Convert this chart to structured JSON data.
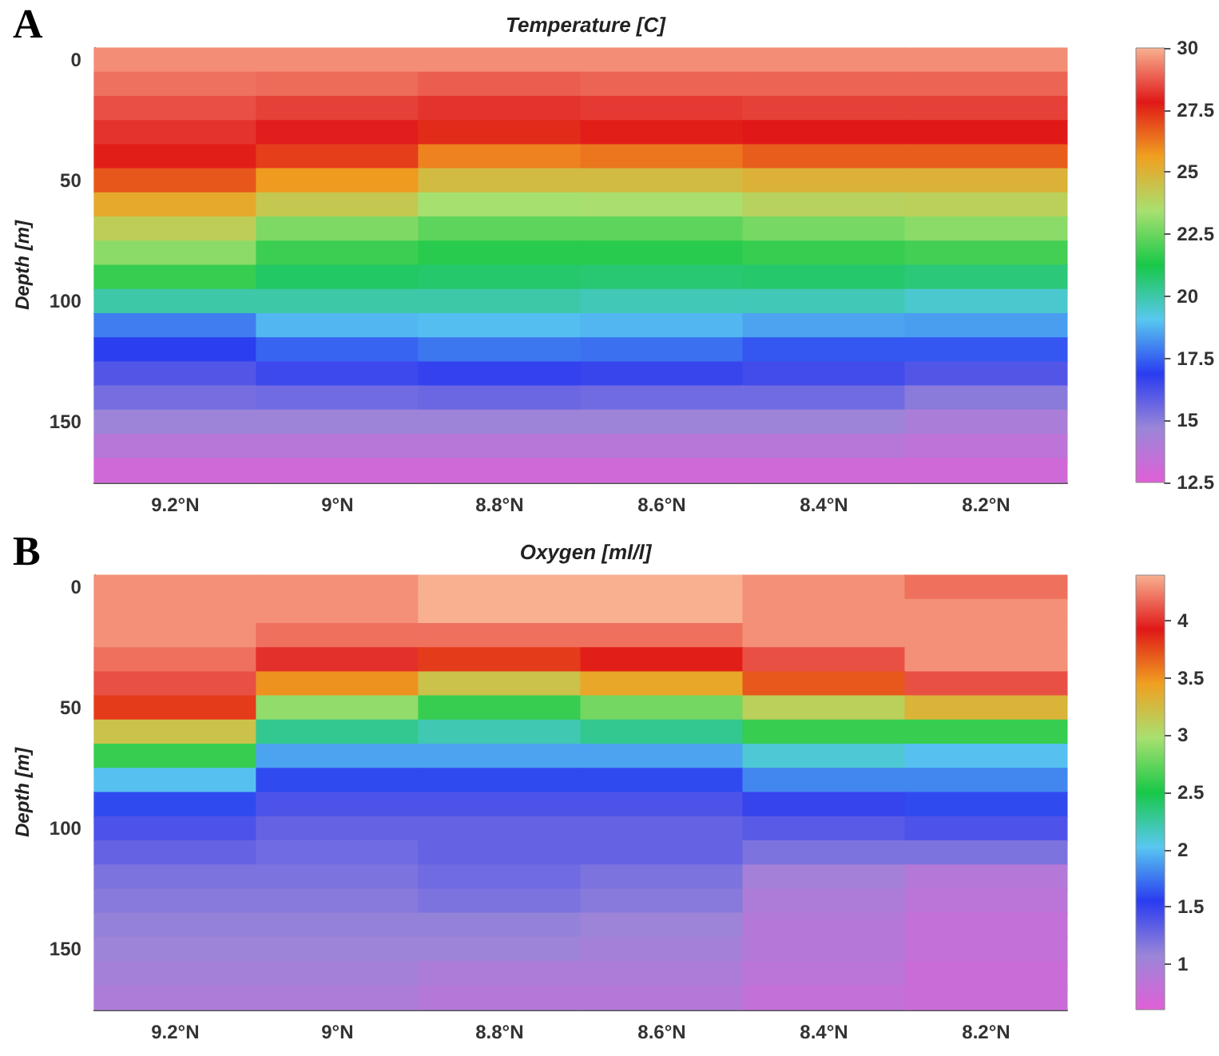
{
  "chart_data": [
    {
      "type": "heatmap",
      "title": "Temperature [C]",
      "ylabel": "Depth [m]",
      "annotations": [
        "A"
      ],
      "categories": [
        "9.2°N",
        "9°N",
        "8.8°N",
        "8.6°N",
        "8.4°N",
        "8.2°N"
      ],
      "y_categories": [
        "0",
        null,
        null,
        null,
        null,
        "50",
        null,
        null,
        null,
        null,
        "100",
        null,
        null,
        null,
        null,
        "150",
        null,
        null
      ],
      "cells": [
        [
          29.5,
          29.5,
          29.5,
          29.5,
          29.5,
          29.5
        ],
        [
          29.1,
          29.0,
          28.8,
          28.9,
          28.9,
          28.9
        ],
        [
          28.6,
          28.4,
          28.2,
          28.3,
          28.4,
          28.4
        ],
        [
          28.2,
          27.9,
          27.5,
          27.7,
          27.8,
          27.8
        ],
        [
          27.7,
          27.2,
          26.1,
          26.3,
          26.7,
          26.7
        ],
        [
          26.8,
          25.7,
          24.7,
          24.7,
          25.0,
          25.0
        ],
        [
          25.3,
          24.3,
          23.4,
          23.5,
          23.9,
          24.0
        ],
        [
          24.1,
          22.8,
          22.3,
          22.3,
          22.7,
          23.0
        ],
        [
          23.0,
          21.8,
          21.5,
          21.5,
          21.7,
          21.9
        ],
        [
          21.7,
          20.9,
          20.8,
          20.7,
          20.8,
          20.6
        ],
        [
          20.0,
          20.0,
          20.0,
          19.8,
          19.8,
          19.5
        ],
        [
          17.9,
          18.8,
          18.9,
          18.8,
          18.5,
          18.4
        ],
        [
          16.9,
          17.5,
          17.8,
          17.7,
          17.3,
          17.3
        ],
        [
          16.1,
          16.5,
          16.7,
          16.6,
          16.4,
          16.1
        ],
        [
          15.4,
          15.5,
          15.6,
          15.5,
          15.5,
          15.0
        ],
        [
          14.6,
          14.6,
          14.6,
          14.6,
          14.6,
          14.2
        ],
        [
          13.8,
          13.8,
          13.8,
          13.8,
          13.8,
          13.6
        ],
        [
          13.0,
          13.0,
          13.0,
          13.0,
          13.0,
          13.0
        ]
      ],
      "clim": [
        12.5,
        30
      ],
      "cticks": [
        12.5,
        15,
        17.5,
        20,
        22.5,
        25,
        27.5,
        30
      ]
    },
    {
      "type": "heatmap",
      "title": "Oxygen [ml/l]",
      "ylabel": "Depth [m]",
      "annotations": [
        "B"
      ],
      "categories": [
        "9.2°N",
        "9°N",
        "8.8°N",
        "8.6°N",
        "8.4°N",
        "8.2°N"
      ],
      "y_categories": [
        "0",
        null,
        null,
        null,
        null,
        "50",
        null,
        null,
        null,
        null,
        "100",
        null,
        null,
        null,
        null,
        "150",
        null,
        null
      ],
      "cells": [
        [
          4.3,
          4.3,
          4.4,
          4.4,
          4.3,
          4.2
        ],
        [
          4.3,
          4.3,
          4.4,
          4.4,
          4.3,
          4.3
        ],
        [
          4.3,
          4.2,
          4.2,
          4.2,
          4.3,
          4.3
        ],
        [
          4.2,
          4.0,
          3.8,
          3.9,
          4.1,
          4.3
        ],
        [
          4.1,
          3.5,
          3.2,
          3.4,
          3.7,
          4.1
        ],
        [
          3.8,
          2.9,
          2.6,
          2.8,
          3.1,
          3.3
        ],
        [
          3.2,
          2.3,
          2.2,
          2.3,
          2.6,
          2.6
        ],
        [
          2.6,
          1.9,
          1.9,
          1.9,
          2.1,
          2.0
        ],
        [
          2.0,
          1.6,
          1.6,
          1.6,
          1.8,
          1.8
        ],
        [
          1.6,
          1.4,
          1.4,
          1.4,
          1.5,
          1.6
        ],
        [
          1.4,
          1.3,
          1.3,
          1.3,
          1.35,
          1.4
        ],
        [
          1.3,
          1.25,
          1.3,
          1.3,
          1.2,
          1.2
        ],
        [
          1.2,
          1.2,
          1.25,
          1.2,
          1.0,
          0.9
        ],
        [
          1.15,
          1.15,
          1.2,
          1.15,
          0.95,
          0.85
        ],
        [
          1.1,
          1.1,
          1.1,
          1.05,
          0.9,
          0.8
        ],
        [
          1.05,
          1.05,
          1.05,
          1.0,
          0.9,
          0.8
        ],
        [
          1.0,
          1.0,
          0.95,
          0.95,
          0.85,
          0.75
        ],
        [
          0.95,
          0.95,
          0.9,
          0.9,
          0.8,
          0.75
        ]
      ],
      "clim": [
        0.6,
        4.4
      ],
      "cticks": [
        1,
        1.5,
        2,
        2.5,
        3,
        3.5,
        4
      ]
    }
  ]
}
